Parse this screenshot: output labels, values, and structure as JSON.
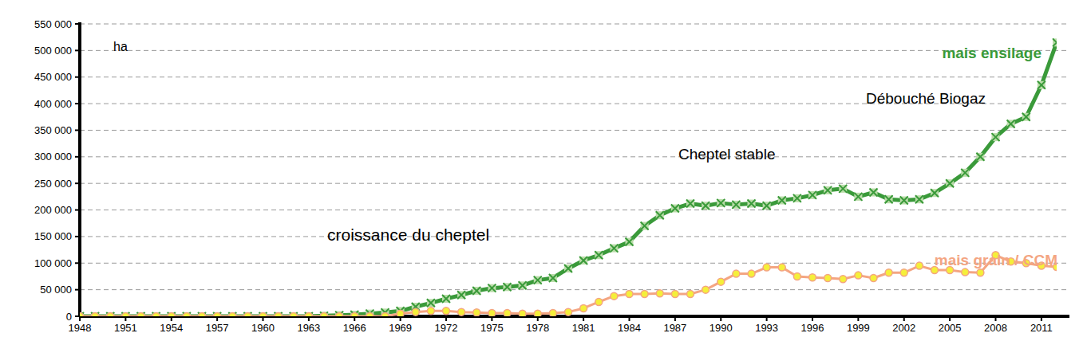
{
  "chart_data": {
    "type": "line",
    "y_label": "ha",
    "annotations": [
      "croissance du cheptel",
      "Cheptel stable",
      "Débouché Biogaz"
    ],
    "x": [
      1948,
      1949,
      1950,
      1951,
      1952,
      1953,
      1954,
      1955,
      1956,
      1957,
      1958,
      1959,
      1960,
      1961,
      1962,
      1963,
      1964,
      1965,
      1966,
      1967,
      1968,
      1969,
      1970,
      1971,
      1972,
      1973,
      1974,
      1975,
      1976,
      1977,
      1978,
      1979,
      1980,
      1981,
      1982,
      1983,
      1984,
      1985,
      1986,
      1987,
      1988,
      1989,
      1990,
      1991,
      1992,
      1993,
      1994,
      1995,
      1996,
      1997,
      1998,
      1999,
      2000,
      2001,
      2002,
      2003,
      2004,
      2005,
      2006,
      2007,
      2008,
      2009,
      2010,
      2011,
      2012
    ],
    "series": [
      {
        "name": "mais ensilage",
        "color": "#3a9a3a",
        "marker": "x",
        "values": [
          0,
          0,
          0,
          0,
          0,
          0,
          0,
          0,
          0,
          0,
          0,
          0,
          0,
          0,
          0,
          0,
          1000,
          2000,
          3000,
          5000,
          7000,
          10000,
          18000,
          25000,
          33000,
          40000,
          48000,
          53000,
          55000,
          58000,
          68000,
          72000,
          90000,
          105000,
          115000,
          128000,
          140000,
          170000,
          190000,
          203000,
          212000,
          208000,
          213000,
          210000,
          212000,
          208000,
          218000,
          222000,
          228000,
          237000,
          240000,
          225000,
          233000,
          220000,
          218000,
          220000,
          232000,
          250000,
          270000,
          300000,
          337000,
          362000,
          375000,
          435000,
          515000
        ]
      },
      {
        "name": "mais grain / CCM",
        "color": "#f4a582",
        "marker": "circle",
        "values": [
          0,
          0,
          0,
          0,
          0,
          0,
          0,
          0,
          0,
          0,
          0,
          0,
          0,
          0,
          0,
          0,
          0,
          0,
          0,
          0,
          0,
          5000,
          8000,
          10000,
          10000,
          8000,
          7000,
          6000,
          6000,
          5000,
          5000,
          6000,
          8000,
          15000,
          27000,
          38000,
          42000,
          42000,
          43000,
          42000,
          42000,
          50000,
          65000,
          80000,
          80000,
          92000,
          92000,
          75000,
          73000,
          72000,
          70000,
          77000,
          72000,
          82000,
          82000,
          95000,
          87000,
          87000,
          83000,
          82000,
          115000,
          103000,
          100000,
          95000,
          93000
        ]
      }
    ],
    "xlim": [
      1948,
      2012
    ],
    "xticks": [
      1948,
      1951,
      1954,
      1957,
      1960,
      1963,
      1966,
      1969,
      1972,
      1975,
      1978,
      1981,
      1984,
      1987,
      1990,
      1993,
      1996,
      1999,
      2002,
      2005,
      2008,
      2011
    ],
    "ylim": [
      0,
      550000
    ],
    "yticks": [
      {
        "value": 0,
        "label": "0"
      },
      {
        "value": 50000,
        "label": "50 000"
      },
      {
        "value": 100000,
        "label": "100 000"
      },
      {
        "value": 150000,
        "label": "150 000"
      },
      {
        "value": 200000,
        "label": "200 000"
      },
      {
        "value": 250000,
        "label": "250 000"
      },
      {
        "value": 300000,
        "label": "300 000"
      },
      {
        "value": 350000,
        "label": "350 000"
      },
      {
        "value": 400000,
        "label": "400 000"
      },
      {
        "value": 450000,
        "label": "450 000"
      },
      {
        "value": 500000,
        "label": "500 000"
      },
      {
        "value": 550000,
        "label": "550 000"
      }
    ],
    "grid": true
  }
}
